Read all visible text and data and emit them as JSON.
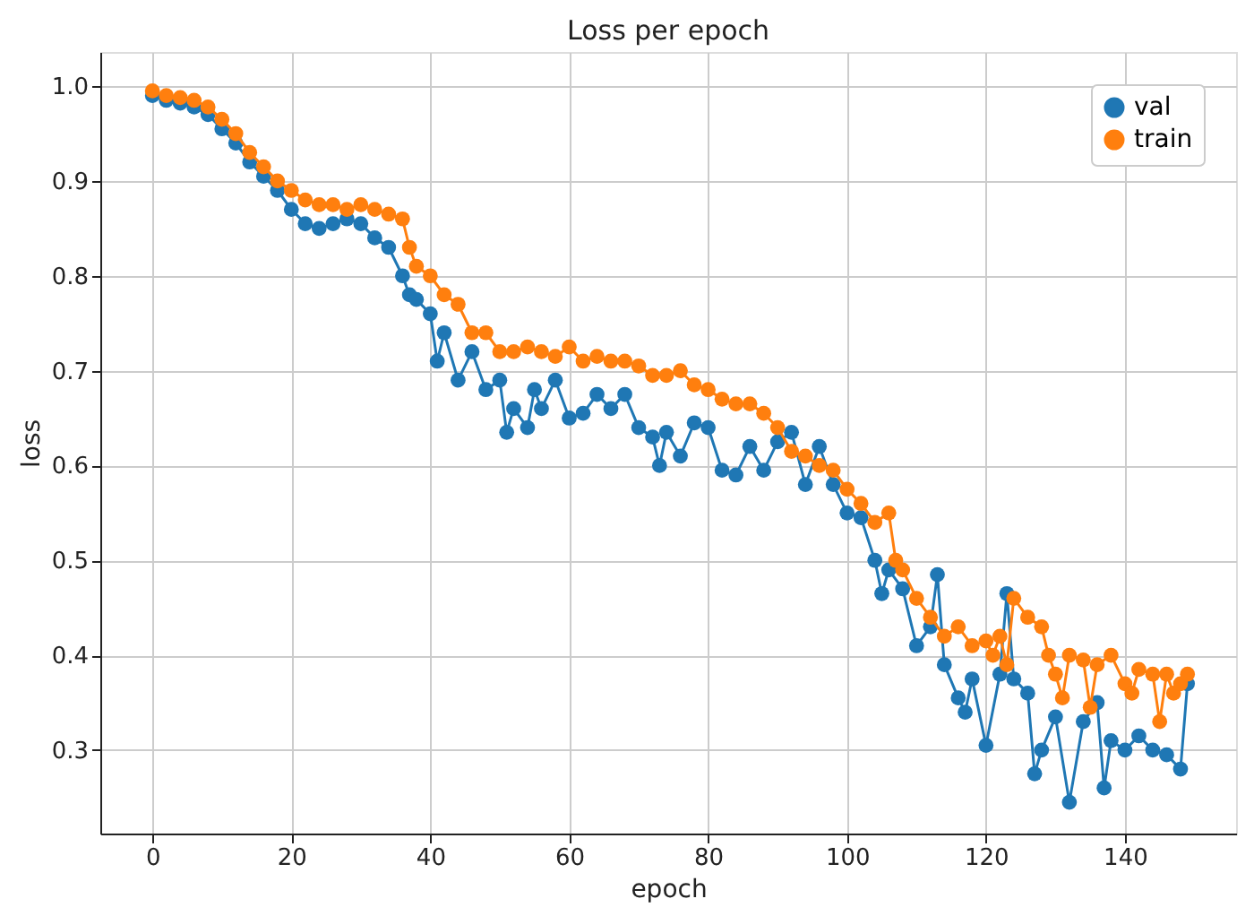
{
  "chart_data": {
    "type": "line",
    "title": "Loss per epoch",
    "xlabel": "epoch",
    "ylabel": "loss",
    "xlim": [
      -7.5,
      156
    ],
    "ylim": [
      0.212,
      1.036
    ],
    "xticks": [
      0,
      20,
      40,
      60,
      80,
      100,
      120,
      140
    ],
    "yticks": [
      {
        "value": 0.3,
        "label": "0.3"
      },
      {
        "value": 0.4,
        "label": "0.4"
      },
      {
        "value": 0.5,
        "label": "0.5"
      },
      {
        "value": 0.6,
        "label": "0.6"
      },
      {
        "value": 0.7,
        "label": "0.7"
      },
      {
        "value": 0.8,
        "label": "0.8"
      },
      {
        "value": 0.9,
        "label": "0.9"
      },
      {
        "value": 1.0,
        "label": "1.0"
      }
    ],
    "grid": true,
    "legend": "top right",
    "marker": "circle",
    "line_style": "solid",
    "series": [
      {
        "name": "val",
        "color": "#1f77b4",
        "x": [
          0,
          2,
          4,
          6,
          8,
          10,
          12,
          14,
          16,
          18,
          20,
          22,
          24,
          26,
          28,
          30,
          32,
          34,
          36,
          37,
          38,
          40,
          41,
          42,
          44,
          46,
          48,
          50,
          51,
          52,
          54,
          55,
          56,
          58,
          60,
          62,
          64,
          66,
          68,
          70,
          72,
          73,
          74,
          76,
          78,
          80,
          82,
          84,
          86,
          88,
          90,
          92,
          94,
          96,
          98,
          100,
          102,
          104,
          105,
          106,
          108,
          110,
          112,
          113,
          114,
          116,
          117,
          118,
          120,
          122,
          123,
          124,
          126,
          127,
          128,
          130,
          132,
          134,
          136,
          137,
          138,
          140,
          142,
          144,
          146,
          148,
          149
        ],
        "values": [
          0.99,
          0.985,
          0.982,
          0.978,
          0.97,
          0.955,
          0.94,
          0.92,
          0.905,
          0.89,
          0.87,
          0.855,
          0.85,
          0.855,
          0.86,
          0.855,
          0.84,
          0.83,
          0.8,
          0.78,
          0.775,
          0.76,
          0.71,
          0.74,
          0.69,
          0.72,
          0.68,
          0.69,
          0.635,
          0.66,
          0.64,
          0.68,
          0.66,
          0.69,
          0.65,
          0.655,
          0.675,
          0.66,
          0.675,
          0.64,
          0.63,
          0.6,
          0.635,
          0.61,
          0.645,
          0.64,
          0.595,
          0.59,
          0.62,
          0.595,
          0.625,
          0.635,
          0.58,
          0.62,
          0.58,
          0.55,
          0.545,
          0.5,
          0.465,
          0.49,
          0.47,
          0.41,
          0.43,
          0.485,
          0.39,
          0.355,
          0.34,
          0.375,
          0.305,
          0.38,
          0.465,
          0.375,
          0.36,
          0.275,
          0.3,
          0.335,
          0.245,
          0.33,
          0.35,
          0.26,
          0.31,
          0.3,
          0.315,
          0.3,
          0.295,
          0.28,
          0.37
        ]
      },
      {
        "name": "train",
        "color": "#ff7f0e",
        "x": [
          0,
          2,
          4,
          6,
          8,
          10,
          12,
          14,
          16,
          18,
          20,
          22,
          24,
          26,
          28,
          30,
          32,
          34,
          36,
          37,
          38,
          40,
          42,
          44,
          46,
          48,
          50,
          52,
          54,
          56,
          58,
          60,
          62,
          64,
          66,
          68,
          70,
          72,
          74,
          76,
          78,
          80,
          82,
          84,
          86,
          88,
          90,
          92,
          94,
          96,
          98,
          100,
          102,
          104,
          106,
          107,
          108,
          110,
          112,
          114,
          116,
          118,
          120,
          121,
          122,
          123,
          124,
          126,
          128,
          129,
          130,
          131,
          132,
          134,
          135,
          136,
          138,
          140,
          141,
          142,
          144,
          145,
          146,
          147,
          148,
          149
        ],
        "values": [
          0.995,
          0.99,
          0.988,
          0.985,
          0.978,
          0.965,
          0.95,
          0.93,
          0.915,
          0.9,
          0.89,
          0.88,
          0.875,
          0.875,
          0.87,
          0.875,
          0.87,
          0.865,
          0.86,
          0.83,
          0.81,
          0.8,
          0.78,
          0.77,
          0.74,
          0.74,
          0.72,
          0.72,
          0.725,
          0.72,
          0.715,
          0.725,
          0.71,
          0.715,
          0.71,
          0.71,
          0.705,
          0.695,
          0.695,
          0.7,
          0.685,
          0.68,
          0.67,
          0.665,
          0.665,
          0.655,
          0.64,
          0.615,
          0.61,
          0.6,
          0.595,
          0.575,
          0.56,
          0.54,
          0.55,
          0.5,
          0.49,
          0.46,
          0.44,
          0.42,
          0.43,
          0.41,
          0.415,
          0.4,
          0.42,
          0.39,
          0.46,
          0.44,
          0.43,
          0.4,
          0.38,
          0.355,
          0.4,
          0.395,
          0.345,
          0.39,
          0.4,
          0.37,
          0.36,
          0.385,
          0.38,
          0.33,
          0.38,
          0.36,
          0.37,
          0.38
        ]
      }
    ]
  }
}
